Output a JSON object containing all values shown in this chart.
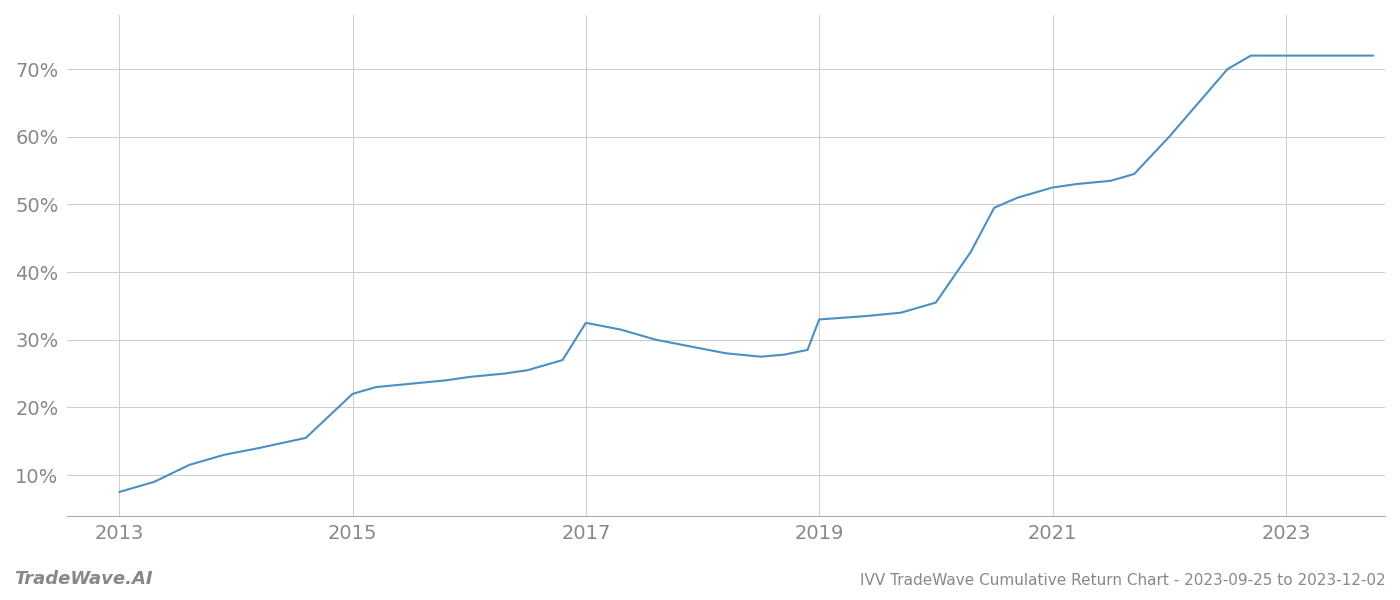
{
  "title": "IVV TradeWave Cumulative Return Chart - 2023-09-25 to 2023-12-02",
  "watermark": "TradeWave.AI",
  "line_color": "#4a90c4",
  "line_width": 1.5,
  "background_color": "#ffffff",
  "grid_color": "#cccccc",
  "x_years": [
    2013.0,
    2013.3,
    2013.6,
    2013.9,
    2014.2,
    2014.6,
    2015.0,
    2015.2,
    2015.5,
    2015.8,
    2016.0,
    2016.3,
    2016.5,
    2016.8,
    2017.0,
    2017.3,
    2017.6,
    2017.9,
    2018.2,
    2018.5,
    2018.7,
    2018.9,
    2019.0,
    2019.4,
    2019.7,
    2020.0,
    2020.3,
    2020.5,
    2020.7,
    2021.0,
    2021.2,
    2021.5,
    2021.7,
    2022.0,
    2022.3,
    2022.5,
    2022.7,
    2023.0,
    2023.75
  ],
  "y_values": [
    7.5,
    9.0,
    11.5,
    13.0,
    14.0,
    15.5,
    22.0,
    23.0,
    23.5,
    24.0,
    24.5,
    25.0,
    25.5,
    27.0,
    32.5,
    31.5,
    30.0,
    29.0,
    28.0,
    27.5,
    27.8,
    28.5,
    33.0,
    33.5,
    34.0,
    35.5,
    43.0,
    49.5,
    51.0,
    52.5,
    53.0,
    53.5,
    54.5,
    60.0,
    66.0,
    70.0,
    72.0,
    72.0,
    72.0
  ],
  "xticks": [
    2013,
    2015,
    2017,
    2019,
    2021,
    2023
  ],
  "yticks": [
    10,
    20,
    30,
    40,
    50,
    60,
    70
  ],
  "ylim": [
    4,
    78
  ],
  "xlim": [
    2012.55,
    2023.85
  ],
  "tick_color": "#888888",
  "tick_fontsize": 14,
  "title_fontsize": 11,
  "watermark_fontsize": 13
}
